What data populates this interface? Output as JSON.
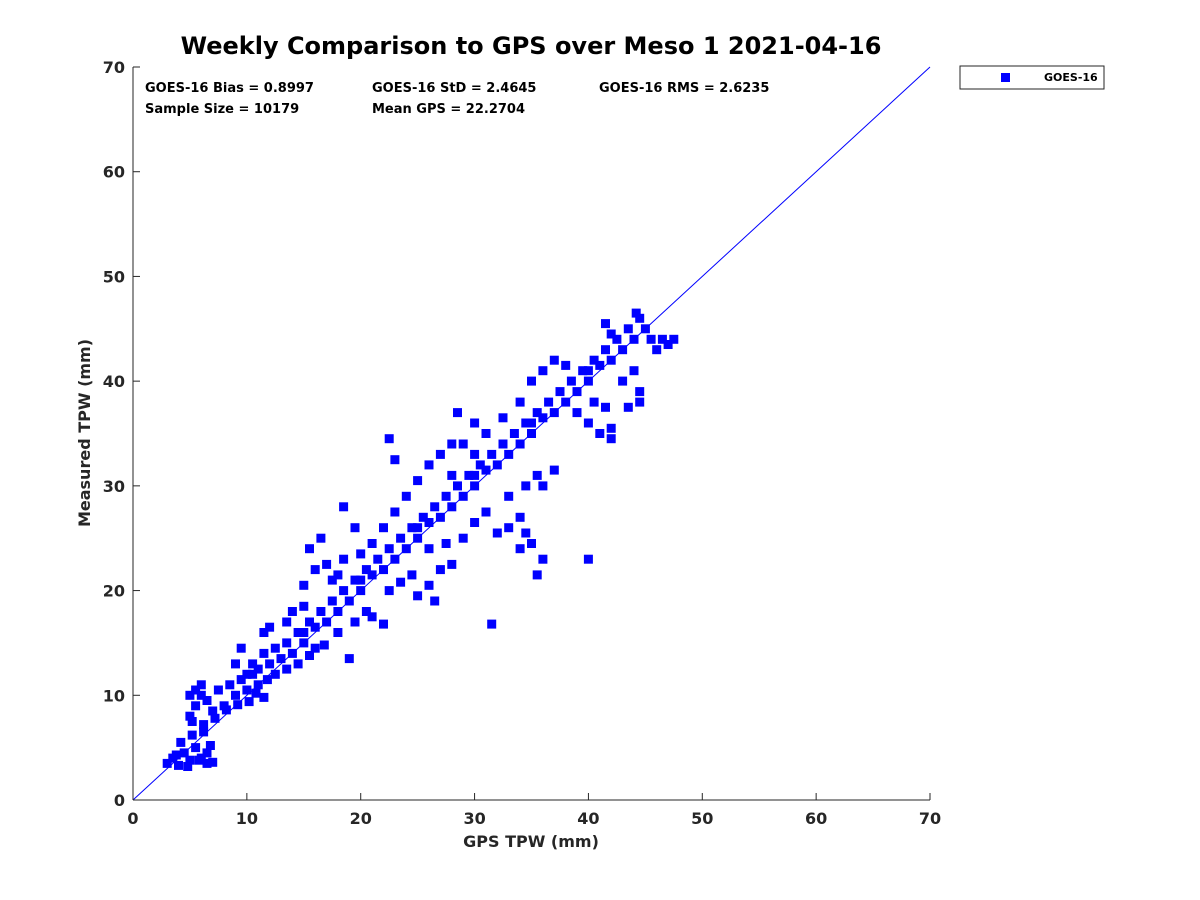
{
  "chart_data": {
    "type": "scatter",
    "title": "Weekly Comparison to GPS over Meso 1 2021-04-16",
    "xlabel": "GPS TPW (mm)",
    "ylabel": "Measured TPW (mm)",
    "xlim": [
      0,
      70
    ],
    "ylim": [
      0,
      70
    ],
    "x_ticks": [
      "0",
      "10",
      "20",
      "30",
      "40",
      "50",
      "60",
      "70"
    ],
    "y_ticks": [
      "0",
      "10",
      "20",
      "30",
      "40",
      "50",
      "60",
      "70"
    ],
    "grid": false,
    "legend_position": "outside-top-right",
    "stats": {
      "bias": "GOES-16 Bias = 0.8997",
      "std": "GOES-16 StD = 2.4645",
      "rms": "GOES-16 RMS = 2.6235",
      "sample_size": "Sample Size = 10179",
      "mean_gps": "Mean GPS = 22.2704"
    },
    "reference_line": {
      "from": [
        0,
        0
      ],
      "to": [
        70,
        70
      ]
    },
    "series": [
      {
        "name": "GOES-16",
        "color": "#0000ff",
        "marker": "square",
        "points": [
          [
            3,
            3.5
          ],
          [
            3.5,
            4
          ],
          [
            4,
            3.3
          ],
          [
            4.5,
            4.5
          ],
          [
            5,
            3.8
          ],
          [
            5.5,
            5
          ],
          [
            6,
            4
          ],
          [
            6.5,
            3.5
          ],
          [
            7,
            3.6
          ],
          [
            4.2,
            5.5
          ],
          [
            5.2,
            6.2
          ],
          [
            6.2,
            6.5
          ],
          [
            6.8,
            5.2
          ],
          [
            6.5,
            4.5
          ],
          [
            3.8,
            4.3
          ],
          [
            4.8,
            3.2
          ],
          [
            5.8,
            3.8
          ],
          [
            5,
            8
          ],
          [
            5.5,
            9
          ],
          [
            6,
            10
          ],
          [
            6.5,
            9.5
          ],
          [
            7,
            8.5
          ],
          [
            7.5,
            10.5
          ],
          [
            8,
            9
          ],
          [
            8.5,
            11
          ],
          [
            9,
            10
          ],
          [
            9.5,
            11.5
          ],
          [
            10,
            10.5
          ],
          [
            10.5,
            12
          ],
          [
            11,
            11
          ],
          [
            5,
            10
          ],
          [
            5.5,
            10.5
          ],
          [
            6,
            11
          ],
          [
            5.2,
            7.5
          ],
          [
            6.2,
            7.2
          ],
          [
            7.2,
            7.8
          ],
          [
            8.2,
            8.6
          ],
          [
            9.2,
            9.1
          ],
          [
            10.2,
            9.4
          ],
          [
            10.8,
            10.2
          ],
          [
            11.5,
            9.8
          ],
          [
            10,
            12
          ],
          [
            10.5,
            13
          ],
          [
            11,
            12.5
          ],
          [
            11.5,
            14
          ],
          [
            12,
            13
          ],
          [
            12.5,
            14.5
          ],
          [
            13,
            13.5
          ],
          [
            13.5,
            15
          ],
          [
            14,
            14
          ],
          [
            14.5,
            16
          ],
          [
            15,
            15
          ],
          [
            9,
            13
          ],
          [
            9.5,
            14.5
          ],
          [
            11.8,
            11.5
          ],
          [
            12.5,
            12
          ],
          [
            13.5,
            12.5
          ],
          [
            14.5,
            13
          ],
          [
            15.5,
            13.8
          ],
          [
            16,
            14.5
          ],
          [
            12,
            16.5
          ],
          [
            13.5,
            17
          ],
          [
            15,
            18.5
          ],
          [
            11.5,
            16
          ],
          [
            15,
            16
          ],
          [
            15.5,
            17
          ],
          [
            16,
            16.5
          ],
          [
            16.5,
            18
          ],
          [
            17,
            17
          ],
          [
            17.5,
            19
          ],
          [
            18,
            18
          ],
          [
            18.5,
            20
          ],
          [
            19,
            19
          ],
          [
            19.5,
            21
          ],
          [
            20,
            20
          ],
          [
            14,
            18
          ],
          [
            15,
            20.5
          ],
          [
            16,
            22
          ],
          [
            17,
            22.5
          ],
          [
            18,
            21.5
          ],
          [
            16.8,
            14.8
          ],
          [
            18,
            16
          ],
          [
            19.5,
            17
          ],
          [
            20.5,
            18
          ],
          [
            21,
            17.5
          ],
          [
            19,
            13.5
          ],
          [
            22,
            16.8
          ],
          [
            15.5,
            24
          ],
          [
            16.5,
            25
          ],
          [
            17.5,
            21
          ],
          [
            18.5,
            23
          ],
          [
            20,
            21
          ],
          [
            20.5,
            22
          ],
          [
            21,
            21.5
          ],
          [
            21.5,
            23
          ],
          [
            22,
            22
          ],
          [
            22.5,
            24
          ],
          [
            23,
            23
          ],
          [
            23.5,
            25
          ],
          [
            24,
            24
          ],
          [
            24.5,
            26
          ],
          [
            25,
            25
          ],
          [
            20,
            23.5
          ],
          [
            21,
            24.5
          ],
          [
            22,
            26
          ],
          [
            23,
            27.5
          ],
          [
            19.5,
            26
          ],
          [
            18.5,
            28
          ],
          [
            22.5,
            20
          ],
          [
            23.5,
            20.8
          ],
          [
            24.5,
            21.5
          ],
          [
            25,
            19.5
          ],
          [
            26,
            20.5
          ],
          [
            26.5,
            19
          ],
          [
            27,
            22
          ],
          [
            28,
            22.5
          ],
          [
            25,
            26
          ],
          [
            25.5,
            27
          ],
          [
            26,
            26.5
          ],
          [
            26.5,
            28
          ],
          [
            27,
            27
          ],
          [
            27.5,
            29
          ],
          [
            28,
            28
          ],
          [
            28.5,
            30
          ],
          [
            29,
            29
          ],
          [
            29.5,
            31
          ],
          [
            30,
            30
          ],
          [
            24,
            29
          ],
          [
            25,
            30.5
          ],
          [
            26,
            32
          ],
          [
            27,
            33
          ],
          [
            28,
            34
          ],
          [
            23,
            32.5
          ],
          [
            22.5,
            34.5
          ],
          [
            26,
            24
          ],
          [
            27.5,
            24.5
          ],
          [
            29,
            25
          ],
          [
            30,
            26.5
          ],
          [
            31,
            27.5
          ],
          [
            32,
            25.5
          ],
          [
            33,
            26
          ],
          [
            34,
            27
          ],
          [
            34.5,
            25.5
          ],
          [
            30,
            31
          ],
          [
            30.5,
            32
          ],
          [
            31,
            31.5
          ],
          [
            31.5,
            33
          ],
          [
            32,
            32
          ],
          [
            32.5,
            34
          ],
          [
            33,
            33
          ],
          [
            33.5,
            35
          ],
          [
            34,
            34
          ],
          [
            34.5,
            36
          ],
          [
            35,
            35
          ],
          [
            29,
            34
          ],
          [
            30,
            36
          ],
          [
            31,
            35
          ],
          [
            32.5,
            36.5
          ],
          [
            28.5,
            37
          ],
          [
            33,
            29
          ],
          [
            34.5,
            30
          ],
          [
            35.5,
            31
          ],
          [
            36,
            30
          ],
          [
            37,
            31.5
          ],
          [
            34,
            24
          ],
          [
            35,
            24.5
          ],
          [
            36,
            23
          ],
          [
            35.5,
            21.5
          ],
          [
            40,
            23
          ],
          [
            31.5,
            16.8
          ],
          [
            30,
            33
          ],
          [
            28,
            31
          ],
          [
            35,
            36
          ],
          [
            35.5,
            37
          ],
          [
            36,
            36.5
          ],
          [
            36.5,
            38
          ],
          [
            37,
            37
          ],
          [
            37.5,
            39
          ],
          [
            38,
            38
          ],
          [
            38.5,
            40
          ],
          [
            39,
            39
          ],
          [
            39.5,
            41
          ],
          [
            40,
            40
          ],
          [
            34,
            38
          ],
          [
            35,
            40
          ],
          [
            36,
            41
          ],
          [
            37,
            42
          ],
          [
            38,
            41.5
          ],
          [
            39,
            37
          ],
          [
            40,
            36
          ],
          [
            41,
            35
          ],
          [
            42,
            35.5
          ],
          [
            40.5,
            38
          ],
          [
            41.5,
            37.5
          ],
          [
            42,
            34.5
          ],
          [
            40,
            41
          ],
          [
            40.5,
            42
          ],
          [
            41,
            41.5
          ],
          [
            41.5,
            43
          ],
          [
            42,
            42
          ],
          [
            42.5,
            44
          ],
          [
            43,
            43
          ],
          [
            43.5,
            45
          ],
          [
            44,
            44
          ],
          [
            44.5,
            46
          ],
          [
            45,
            45
          ],
          [
            45.5,
            44
          ],
          [
            46,
            43
          ],
          [
            46.5,
            44
          ],
          [
            47,
            43.5
          ],
          [
            47.5,
            44
          ],
          [
            44.5,
            39
          ],
          [
            44.5,
            38
          ],
          [
            42,
            44.5
          ],
          [
            43,
            40
          ],
          [
            44,
            41
          ],
          [
            43.5,
            37.5
          ],
          [
            44.2,
            46.5
          ],
          [
            41.5,
            45.5
          ]
        ]
      }
    ]
  }
}
